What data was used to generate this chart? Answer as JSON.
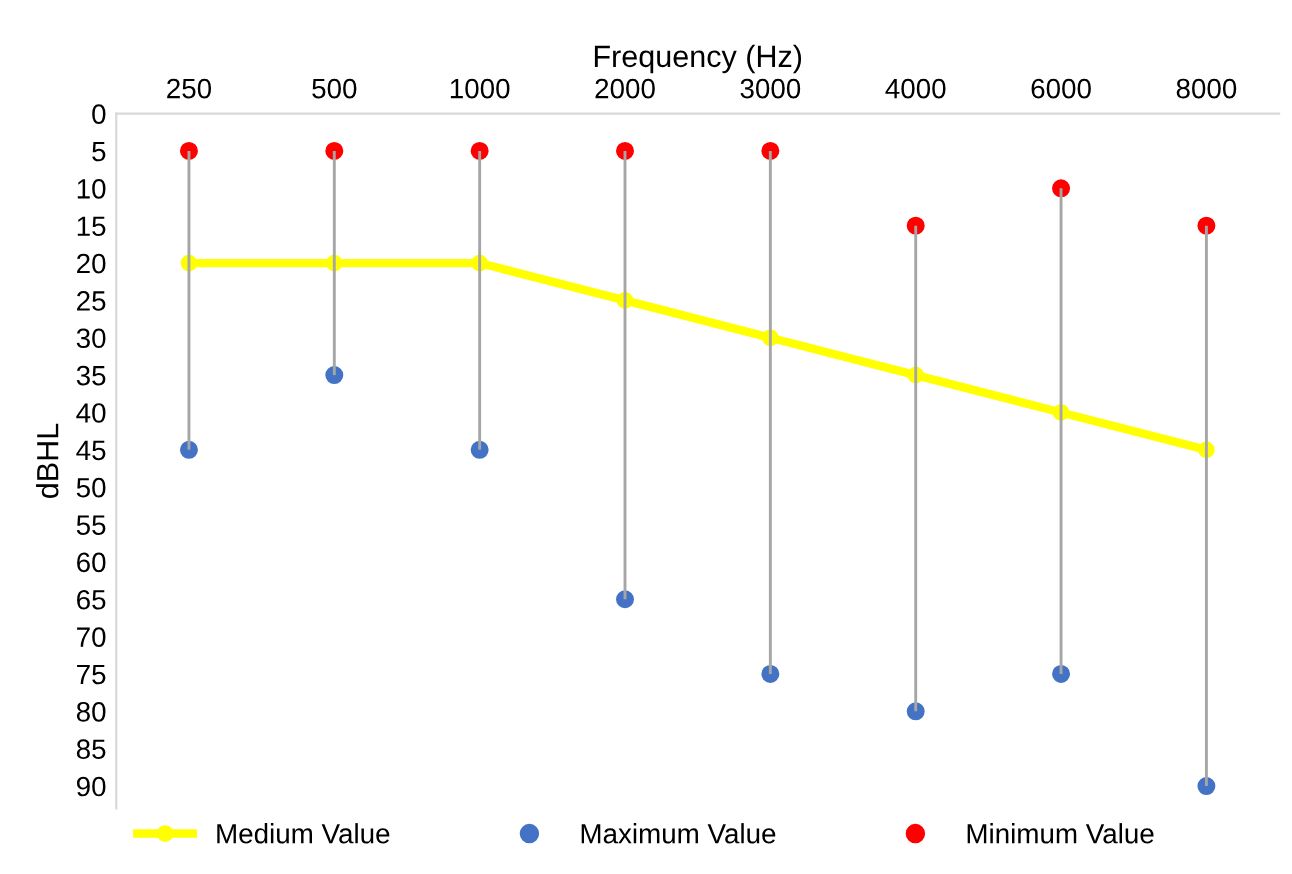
{
  "chart_data": {
    "type": "line",
    "xlabel": "Frequency (Hz)",
    "ylabel": "dBHL",
    "categories": [
      "250",
      "500",
      "1000",
      "2000",
      "3000",
      "4000",
      "6000",
      "8000"
    ],
    "series": [
      {
        "name": "Medium Value",
        "color": "#ffff00",
        "marker": "circle",
        "values": [
          20,
          20,
          20,
          25,
          30,
          35,
          40,
          45
        ]
      },
      {
        "type": "bar",
        "color": "#a6a6a6",
        "base": [
          5,
          5,
          5,
          5,
          5,
          15,
          10,
          15
        ],
        "values": [
          40,
          30,
          40,
          60,
          70,
          65,
          65,
          75
        ]
      },
      {
        "name": "Maximum Value",
        "type": "scatter",
        "color": "#4472c4",
        "marker": "circle",
        "values": [
          45,
          35,
          45,
          65,
          75,
          80,
          75,
          90
        ]
      },
      {
        "name": "Minimum Value",
        "type": "scatter",
        "color": "#ff0000",
        "marker": "circle",
        "values": [
          5,
          5,
          5,
          5,
          5,
          15,
          10,
          15
        ]
      }
    ],
    "ylim": [
      93,
      0
    ],
    "yticks": [
      0,
      5,
      10,
      15,
      20,
      25,
      30,
      35,
      40,
      45,
      50,
      55,
      60,
      65,
      70,
      75,
      80,
      85,
      90
    ],
    "grid": false,
    "legend": "bottom"
  }
}
